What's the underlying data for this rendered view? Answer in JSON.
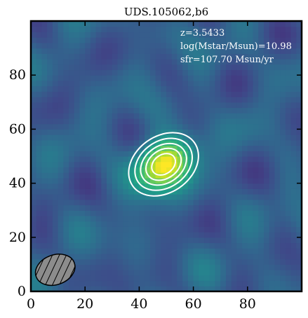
{
  "chart_data": {
    "type": "heatmap",
    "title": "UDS.105062,b6",
    "xlabel": "",
    "ylabel": "",
    "xlim": [
      0,
      100
    ],
    "ylim": [
      0,
      100
    ],
    "xticks": [
      0,
      20,
      40,
      60,
      80
    ],
    "yticks": [
      0,
      20,
      40,
      60,
      80
    ],
    "colormap": "viridis",
    "source": {
      "x": 49,
      "y": 47,
      "sigma_x": 8,
      "sigma_y": 6,
      "angle_deg": -35
    },
    "contour_levels": [
      0.22,
      0.36,
      0.52,
      0.68,
      0.84
    ],
    "contour_color": "#ffffff",
    "beam": {
      "x": 9,
      "y": 8,
      "width": 15,
      "height": 11,
      "angle_deg": -20,
      "facecolor": "#8c8c8c",
      "hatch": "diagonal"
    },
    "annotations": [
      "z=3.5433",
      "log(Mstar/Msun)=10.98",
      "sfr=107.70 Msun/yr"
    ]
  }
}
